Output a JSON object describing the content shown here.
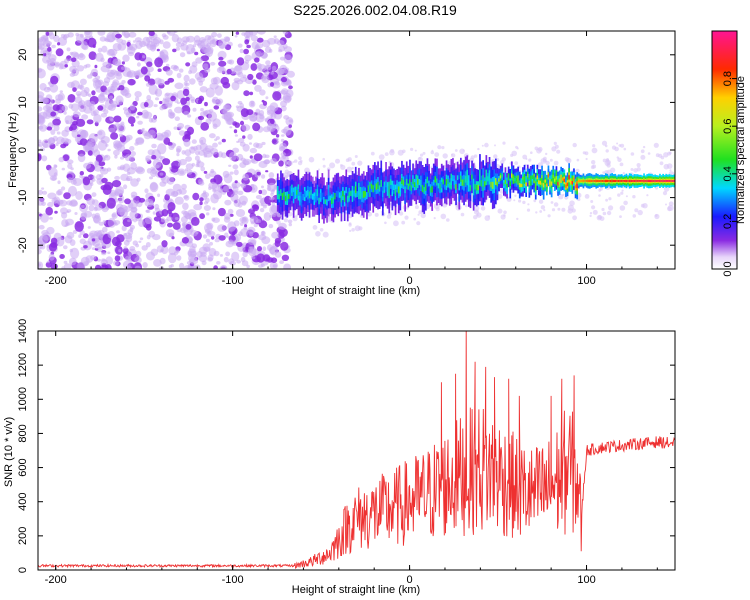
{
  "title": "S225.2026.002.04.08.R19",
  "colors": {
    "snr_line": "#ee3030",
    "cloud": "#8a2be2",
    "axis": "#000000"
  },
  "chart_data": [
    {
      "type": "heatmap",
      "name": "spectrogram",
      "xlabel": "Height of straight line (km)",
      "ylabel": "Frequency (Hz)",
      "xlim": [
        -210,
        150
      ],
      "ylim": [
        -25,
        25
      ],
      "xticks": [
        -200,
        -100,
        0,
        100
      ],
      "yticks": [
        -20,
        -10,
        0,
        10,
        20
      ],
      "xtick_labels": [
        "-200",
        "-100",
        "0",
        "100"
      ],
      "ytick_labels": [
        "-20",
        "-10",
        "0",
        "10",
        "20"
      ],
      "grid": false,
      "colorbar": {
        "label": "Normalized spectral amplitude",
        "range": [
          0,
          1
        ],
        "ticks": [
          0.0,
          0.2,
          0.4,
          0.6,
          0.8
        ],
        "tick_labels": [
          "0.0",
          "0.2",
          "0.4",
          "0.6",
          "0.8"
        ],
        "colormap": "rainbow (purple-blue-cyan-green-yellow-red-magenta)"
      },
      "features": [
        {
          "description": "broadband noise",
          "x_range": [
            -210,
            -75
          ],
          "y_range": [
            -25,
            25
          ],
          "amplitude": 0.05
        },
        {
          "description": "signal trace",
          "x_range": [
            -75,
            150
          ],
          "y_start": -10,
          "y_end": -6.5,
          "amplitude_max": 1.0
        }
      ],
      "ridge": {
        "x": [
          -75,
          -50,
          -25,
          0,
          25,
          50,
          75,
          100,
          125,
          150
        ],
        "y": [
          -9,
          -10,
          -8.5,
          -7.5,
          -7,
          -6.5,
          -6.5,
          -6.5,
          -6.5,
          -6.5
        ],
        "amplitude": [
          0.35,
          0.3,
          0.35,
          0.35,
          0.35,
          0.4,
          0.55,
          0.75,
          0.85,
          0.9
        ]
      }
    },
    {
      "type": "line",
      "name": "snr",
      "xlabel": "Height of straight line (km)",
      "ylabel": "SNR (10 * v/v)",
      "xlim": [
        -210,
        150
      ],
      "ylim": [
        0,
        1400
      ],
      "xticks": [
        -200,
        -100,
        0,
        100
      ],
      "yticks": [
        0,
        200,
        400,
        600,
        800,
        1000,
        1200,
        1400
      ],
      "xtick_labels": [
        "-200",
        "-100",
        "0",
        "100"
      ],
      "ytick_labels": [
        "0",
        "200",
        "400",
        "600",
        "800",
        "1000",
        "1200",
        "1400"
      ],
      "grid": false,
      "envelope": {
        "x": [
          -210,
          -100,
          -65,
          -55,
          -45,
          -40,
          -35,
          -30,
          -20,
          -10,
          0,
          10,
          20,
          30,
          40,
          50,
          60,
          70,
          80,
          90,
          95,
          97,
          100,
          110,
          120,
          130,
          140,
          150
        ],
        "y": [
          25,
          25,
          25,
          50,
          100,
          180,
          260,
          300,
          330,
          360,
          400,
          440,
          500,
          560,
          600,
          560,
          480,
          440,
          480,
          600,
          520,
          300,
          700,
          720,
          730,
          740,
          750,
          740
        ]
      },
      "spikes": [
        {
          "x": 18,
          "y": 1100
        },
        {
          "x": 26,
          "y": 1150
        },
        {
          "x": 32,
          "y": 1420
        },
        {
          "x": 37,
          "y": 1220
        },
        {
          "x": 43,
          "y": 1190
        },
        {
          "x": 48,
          "y": 1130
        },
        {
          "x": 56,
          "y": 1120
        },
        {
          "x": 62,
          "y": 1020
        },
        {
          "x": 80,
          "y": 1020
        },
        {
          "x": 86,
          "y": 1120
        },
        {
          "x": 93,
          "y": 1140
        },
        {
          "x": 97,
          "y": 110
        }
      ]
    }
  ]
}
